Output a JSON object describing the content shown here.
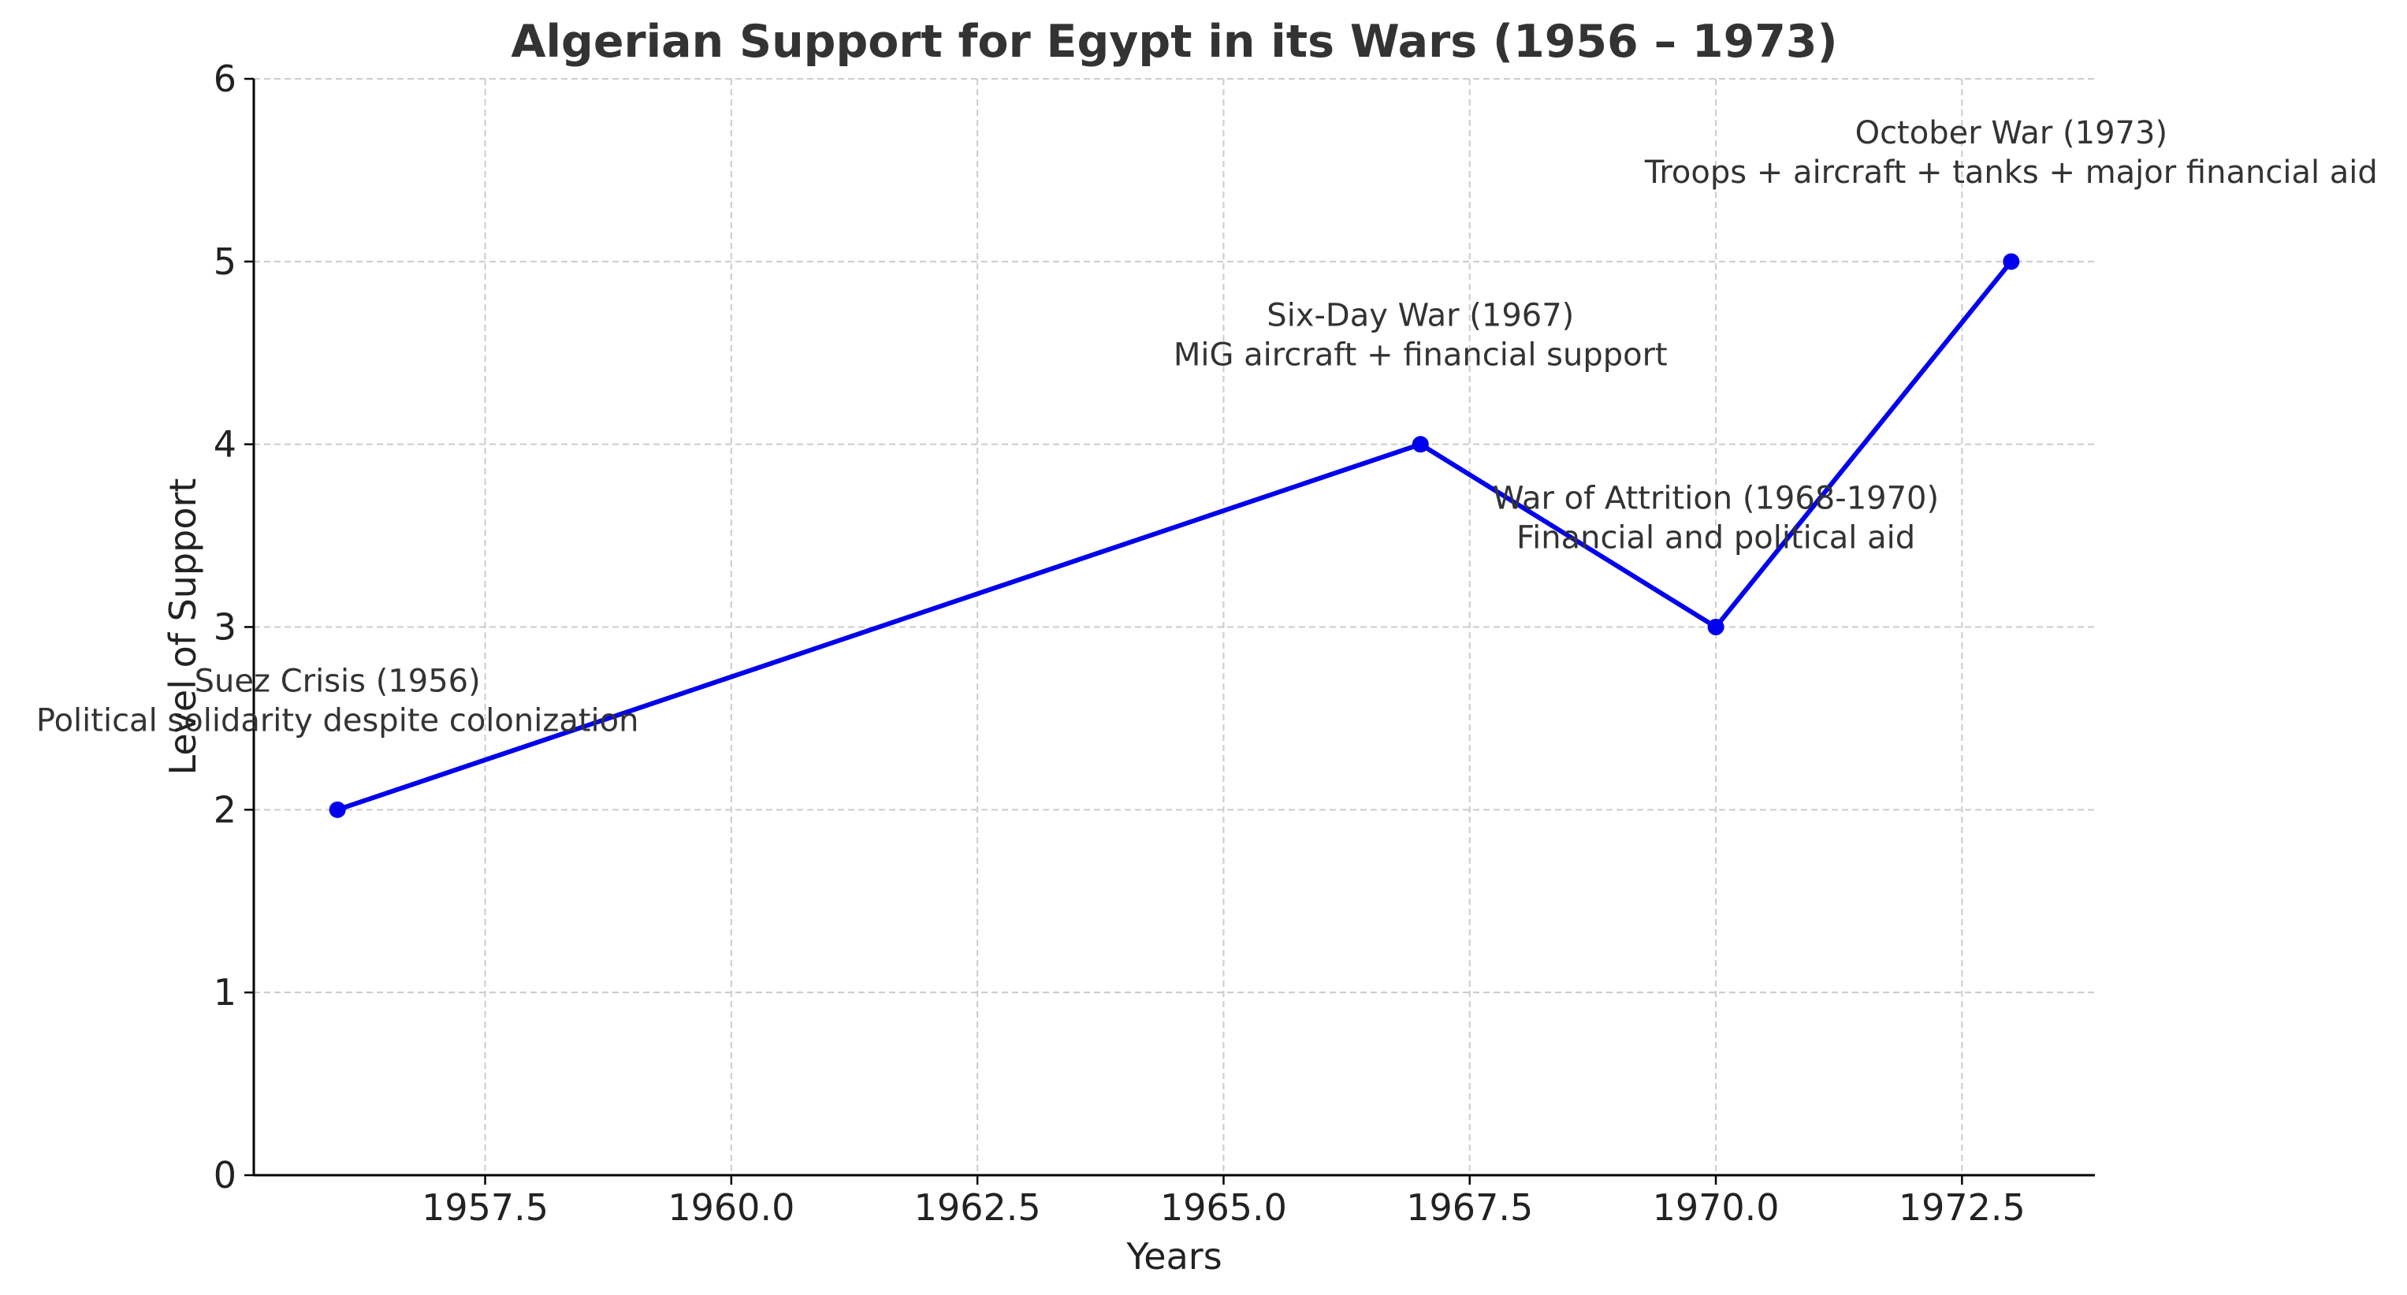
{
  "chart_data": {
    "type": "line",
    "title": "Algerian Support for Egypt in its Wars (1956 – 1973)",
    "xlabel": "Years",
    "ylabel": "Level of Support",
    "xlim": [
      1955.15,
      1973.85
    ],
    "ylim": [
      0,
      6
    ],
    "x_ticks": [
      1957.5,
      1960.0,
      1962.5,
      1965.0,
      1967.5,
      1970.0,
      1972.5
    ],
    "x_tick_labels": [
      "1957.5",
      "1960.0",
      "1962.5",
      "1965.0",
      "1967.5",
      "1970.0",
      "1972.5"
    ],
    "y_ticks": [
      0,
      1,
      2,
      3,
      4,
      5,
      6
    ],
    "y_tick_labels": [
      "0",
      "1",
      "2",
      "3",
      "4",
      "5",
      "6"
    ],
    "grid": true,
    "series": [
      {
        "color": "#0000ee",
        "x": [
          1956,
          1967,
          1970,
          1973
        ],
        "y": [
          2,
          4,
          3,
          5
        ]
      }
    ],
    "annotations": [
      {
        "x": 1956,
        "y": 2,
        "lines": [
          "Suez Crisis (1956)",
          "Political solidarity despite colonization"
        ]
      },
      {
        "x": 1967,
        "y": 4,
        "lines": [
          "Six-Day War (1967)",
          "MiG aircraft + financial support"
        ]
      },
      {
        "x": 1970,
        "y": 3,
        "lines": [
          "War of Attrition (1968-1970)",
          "Financial and political aid"
        ]
      },
      {
        "x": 1973,
        "y": 5,
        "lines": [
          "October War (1973)",
          "Troops + aircraft + tanks + major financial aid"
        ]
      }
    ]
  }
}
